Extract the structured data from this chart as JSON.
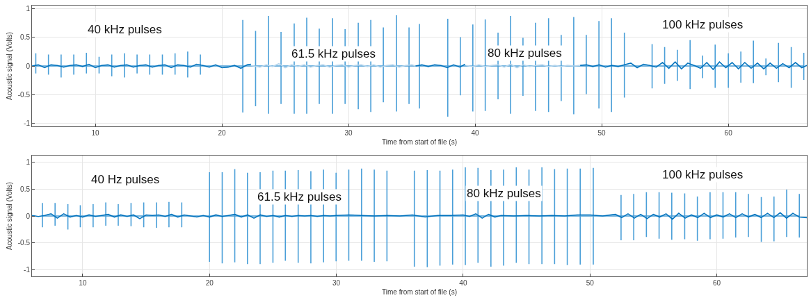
{
  "chart_data": [
    {
      "type": "line",
      "xlabel": "Time from start of file (s)",
      "ylabel": "Acoustic signal (Volts)",
      "xlim": [
        5,
        66.2
      ],
      "ylim": [
        -1.05,
        1.05
      ],
      "xticks": [
        10,
        20,
        30,
        40,
        50,
        60
      ],
      "yticks": [
        -1,
        -0.5,
        0,
        0.5,
        1
      ],
      "grid": true,
      "marker": "none",
      "line_style": "solid",
      "annotations": [
        "40 kHz pulses",
        {
          "text": "61.5 kHz pulses",
          "x": 28.8,
          "y": 0.21
        },
        {
          "text": "80 kHz pulses",
          "x": 43.9,
          "y": 0.22
        },
        "100 kHz pulses"
      ],
      "series": [
        {
          "color": "#4a9fd8",
          "x": [
            5.3,
            5.3,
            5.3,
            5.3,
            6.3,
            6.3,
            6.3,
            6.3,
            7.3,
            7.3,
            7.3,
            7.3,
            8.3,
            8.3,
            8.3,
            8.3,
            9.3,
            9.3,
            9.3,
            9.3,
            10.3,
            10.3,
            10.3,
            10.3,
            11.3,
            11.3,
            11.3,
            11.3,
            12.3,
            12.3,
            12.3,
            12.3,
            13.3,
            13.3,
            13.3,
            13.3,
            14.3,
            14.3,
            14.3,
            14.3,
            15.3,
            15.3,
            15.3,
            15.3,
            16.3,
            16.3,
            16.3,
            16.3,
            17.3,
            17.3,
            17.3,
            17.3,
            18.3,
            18.3,
            18.3,
            18.3,
            21.65,
            21.65,
            21.65,
            21.65,
            22.66,
            22.66,
            22.66,
            22.66,
            23.68,
            23.68,
            23.68,
            23.68,
            24.67,
            24.67,
            24.67,
            24.67,
            25.71,
            25.71,
            25.71,
            25.71,
            26.7,
            26.7,
            26.7,
            26.7,
            27.69,
            27.69,
            27.69,
            27.69,
            28.74,
            28.74,
            28.74,
            28.74,
            29.73,
            29.73,
            29.73,
            29.73,
            30.77,
            30.77,
            30.77,
            30.77,
            31.76,
            31.76,
            31.76,
            31.76,
            32.75,
            32.75,
            32.75,
            32.75,
            33.79,
            33.79,
            33.79,
            33.79,
            34.78,
            34.78,
            34.78,
            34.78,
            35.6,
            35.6,
            35.6,
            35.6,
            37.84,
            37.84,
            37.84,
            37.84,
            38.83,
            38.83,
            38.83,
            38.83,
            39.82,
            39.82,
            39.82,
            39.82,
            40.8,
            40.8,
            40.8,
            40.8,
            41.81,
            41.81,
            41.81,
            41.81,
            42.8,
            42.8,
            42.8,
            42.8,
            43.78,
            43.78,
            43.78,
            43.78,
            44.77,
            44.77,
            44.77,
            44.77,
            45.8,
            45.8,
            45.8,
            45.8,
            46.8,
            46.8,
            46.8,
            46.8,
            47.79,
            47.79,
            47.79,
            47.79,
            48.78,
            48.78,
            48.78,
            48.78,
            49.78,
            49.78,
            49.78,
            49.78,
            50.77,
            50.77,
            50.77,
            50.77,
            51.79,
            51.79,
            51.79,
            51.79,
            53.98,
            53.98,
            53.98,
            53.98,
            54.97,
            54.97,
            54.97,
            54.97,
            55.97,
            55.97,
            55.97,
            55.97,
            56.98,
            56.98,
            56.98,
            56.98,
            57.97,
            57.97,
            57.97,
            57.97,
            58.96,
            58.96,
            58.96,
            58.96,
            60,
            60,
            60,
            60,
            60.99,
            60.99,
            60.99,
            60.99,
            61.98,
            61.98,
            61.98,
            61.98,
            62.97,
            62.97,
            62.97,
            62.97,
            63.96,
            63.96,
            63.96,
            63.96,
            64.97,
            64.97,
            64.97,
            64.97,
            65.96,
            65.96,
            65.96,
            65.96
          ],
          "values": [
            0,
            0.22,
            -0.13,
            0,
            0,
            0.2,
            -0.15,
            0,
            0,
            0.2,
            -0.2,
            0,
            0,
            0.2,
            -0.15,
            0,
            0,
            0.23,
            -0.13,
            0,
            0,
            0.16,
            -0.13,
            0,
            0,
            0.2,
            -0.18,
            0,
            0,
            0.22,
            -0.2,
            0,
            0,
            0.2,
            -0.13,
            0,
            0,
            0.2,
            -0.15,
            0,
            0,
            0.2,
            -0.15,
            0,
            0,
            0.22,
            -0.15,
            0,
            0,
            0.25,
            -0.2,
            0,
            0,
            0.2,
            -0.15,
            0,
            0,
            0.8,
            -0.81,
            0,
            0,
            0.61,
            -0.7,
            0,
            0,
            0.87,
            -0.83,
            0,
            0,
            0.59,
            -0.66,
            0,
            0,
            0.74,
            -0.83,
            0,
            0,
            0.84,
            -0.83,
            0,
            0,
            0.65,
            -0.66,
            0,
            0,
            0.83,
            -0.83,
            0,
            0,
            0.64,
            -0.66,
            0,
            0,
            0.75,
            -0.75,
            0,
            0,
            0.8,
            -0.8,
            0,
            0,
            0.67,
            -0.63,
            0,
            0,
            0.88,
            -0.79,
            0,
            0,
            0.67,
            -0.66,
            0,
            0,
            0.73,
            -0.74,
            0,
            0,
            0.82,
            -0.88,
            0,
            0,
            0.5,
            -0.51,
            0,
            0,
            0.72,
            -0.79,
            0,
            0,
            0.81,
            -0.78,
            0,
            0,
            0.58,
            -0.58,
            0,
            0,
            0.87,
            -0.83,
            0,
            0,
            0.49,
            -0.52,
            0,
            0,
            0.75,
            -0.78,
            0,
            0,
            0.83,
            -0.8,
            0,
            0,
            0.54,
            -0.61,
            0,
            0,
            0.85,
            -0.84,
            0,
            0,
            0.54,
            -0.49,
            0,
            0,
            0.78,
            -0.74,
            0,
            0,
            0.83,
            -0.8,
            0,
            0,
            0.58,
            -0.55,
            0,
            0,
            0.38,
            -0.39,
            0,
            0,
            0.33,
            -0.31,
            0,
            0,
            0.28,
            -0.26,
            0,
            0,
            0.45,
            -0.4,
            0,
            0,
            0.18,
            -0.21,
            0,
            0,
            0.37,
            -0.38,
            0,
            0,
            0.22,
            -0.38,
            0,
            0,
            0.25,
            -0.29,
            0,
            0,
            0.44,
            -0.3,
            0,
            0,
            0.13,
            -0.16,
            0,
            0,
            0.4,
            -0.28,
            0,
            0,
            0.33,
            -0.38,
            0,
            0,
            0.23,
            -0.24,
            0
          ]
        },
        {
          "color": "#0072bd",
          "x": [
            5,
            5.5,
            6,
            6.5,
            7,
            7.5,
            8,
            8.5,
            9,
            9.5,
            10,
            10.5,
            11,
            11.5,
            12,
            12.5,
            13,
            13.5,
            14,
            14.5,
            15,
            15.5,
            16,
            16.5,
            17,
            17.5,
            18,
            18.5,
            19,
            19.5,
            20,
            20.5,
            21,
            21.5,
            22,
            22.3
          ],
          "values": [
            0,
            0.02,
            -0.03,
            0.02,
            0.01,
            -0.02,
            0.01,
            0.02,
            -0.01,
            0.03,
            -0.03,
            0.01,
            0.02,
            -0.02,
            0.01,
            0.02,
            -0.02,
            0.01,
            0.02,
            -0.02,
            0.01,
            0.02,
            -0.03,
            0.02,
            0.01,
            -0.02,
            0.03,
            0.01,
            -0.02,
            0.02,
            -0.03,
            -0.02,
            0.01,
            -0.04,
            0.02,
            0.03
          ]
        },
        {
          "color": "#b3d4ec",
          "x": [
            22.3,
            23,
            23.5,
            24,
            24.5,
            25,
            25.5,
            26,
            26.5,
            27,
            27.5,
            28,
            28.5,
            29,
            29.5,
            30,
            30.5,
            31,
            31.5,
            32,
            32.5,
            33,
            33.5,
            34,
            34.5,
            35,
            35.3
          ],
          "values": [
            0.01,
            -0.02,
            0.02,
            -0.01,
            0.04,
            -0.03,
            0.02,
            -0.01,
            0.02,
            -0.02,
            0.01,
            0.02,
            -0.02,
            0.01,
            0.02,
            -0.02,
            0.01,
            0.02,
            -0.01,
            0.02,
            -0.02,
            0.01,
            0.02,
            -0.02,
            0.01,
            0.02,
            0
          ]
        },
        {
          "color": "#0072bd",
          "x": [
            35.3,
            35.8,
            36.3,
            36.8,
            37.3,
            37.8,
            38.3,
            38.8,
            39.2
          ],
          "values": [
            0,
            0.02,
            -0.01,
            0.02,
            0.01,
            -0.03,
            0.02,
            -0.02,
            0.03
          ]
        },
        {
          "color": "#b3d4ec",
          "x": [
            39.3,
            39.8,
            40.3,
            40.8,
            41.3,
            41.8,
            42.3,
            42.8,
            43.3,
            43.8,
            44.3,
            44.8,
            45.3,
            45.8,
            46.3,
            46.8,
            47.3,
            47.8,
            48.3
          ],
          "values": [
            0.01,
            -0.01,
            0.02,
            -0.01,
            0.01,
            0.02,
            -0.02,
            0.03,
            -0.03,
            0.02,
            -0.01,
            0.01,
            0.02,
            -0.01,
            0.01,
            -0.01,
            0.01,
            0,
            0.01
          ]
        },
        {
          "color": "#0072bd",
          "x": [
            48.3,
            48.8,
            49.3,
            49.8,
            50.3,
            50.8,
            51.3,
            51.8,
            52.3,
            52.8,
            53.3,
            53.8,
            54.3,
            54.8,
            55.3,
            55.8,
            56.3,
            56.8,
            57.3,
            57.8,
            58.3,
            58.8,
            59.3,
            59.8,
            60.3,
            60.8,
            61.3,
            61.8,
            62.3,
            62.8,
            63.3,
            63.8,
            64.3,
            64.8,
            65.3,
            65.8,
            66.2
          ],
          "values": [
            0.01,
            0.02,
            -0.01,
            0.02,
            -0.02,
            0.01,
            -0.01,
            0.02,
            0.05,
            -0.03,
            0.03,
            0.01,
            -0.02,
            0.06,
            -0.04,
            0.07,
            -0.05,
            0.05,
            0.01,
            -0.04,
            0.06,
            -0.06,
            0.07,
            -0.03,
            0.06,
            -0.05,
            0.06,
            -0.04,
            0.05,
            -0.05,
            0.05,
            -0.04,
            0.04,
            -0.03,
            0.06,
            -0.03,
            0.01
          ]
        }
      ]
    },
    {
      "type": "line",
      "xlabel": "Time from start of file (s)",
      "ylabel": "Acoustic signal (Volts)",
      "xlim": [
        6,
        67.1
      ],
      "ylim": [
        -1.12,
        1.12
      ],
      "xticks": [
        10,
        20,
        30,
        40,
        50,
        60
      ],
      "yticks": [
        -1,
        -0.5,
        0,
        0.5,
        1
      ],
      "grid": true,
      "marker": "none",
      "line_style": "solid",
      "annotations": [
        "40 Hz pulses",
        {
          "text": "61.5 kHz pulses",
          "x": 27.1,
          "y": 0.36
        },
        {
          "text": "80 kHz pulses",
          "x": 43.2,
          "y": 0.42
        },
        "100 kHz pulses"
      ],
      "series": [
        {
          "color": "#4a9fd8",
          "x": [
            6.82,
            6.82,
            6.82,
            6.82,
            7.82,
            7.82,
            7.82,
            7.82,
            8.83,
            8.83,
            8.83,
            8.83,
            9.81,
            9.81,
            9.81,
            9.81,
            10.82,
            10.82,
            10.82,
            10.82,
            11.82,
            11.82,
            11.82,
            11.82,
            12.8,
            12.8,
            12.8,
            12.8,
            13.81,
            13.81,
            13.81,
            13.81,
            14.81,
            14.81,
            14.81,
            14.81,
            15.82,
            15.82,
            15.82,
            15.82,
            16.8,
            16.8,
            16.8,
            16.8,
            17.81,
            17.81,
            17.81,
            17.81,
            20,
            20,
            20,
            20,
            21,
            21,
            21,
            21,
            21.99,
            21.99,
            21.99,
            21.99,
            22.99,
            22.99,
            22.99,
            22.99,
            23.99,
            23.99,
            23.99,
            23.99,
            25,
            25,
            25,
            25,
            25.98,
            25.98,
            25.98,
            25.98,
            26.99,
            26.99,
            26.99,
            26.99,
            27.99,
            27.99,
            27.99,
            27.99,
            28.99,
            28.99,
            28.99,
            28.99,
            29.98,
            29.98,
            29.98,
            29.98,
            30.98,
            30.98,
            30.98,
            30.98,
            31.99,
            31.99,
            31.99,
            31.99,
            32.99,
            32.99,
            32.99,
            32.99,
            33.99,
            33.99,
            33.99,
            33.99,
            36.15,
            36.15,
            36.15,
            36.15,
            37.17,
            37.17,
            37.17,
            37.17,
            38.17,
            38.17,
            38.17,
            38.17,
            39.17,
            39.17,
            39.17,
            39.17,
            40.17,
            40.17,
            40.17,
            40.17,
            41.17,
            41.17,
            41.17,
            41.17,
            42.19,
            42.19,
            42.19,
            42.19,
            43.19,
            43.19,
            43.19,
            43.19,
            44.19,
            44.19,
            44.19,
            44.19,
            45.19,
            45.19,
            45.19,
            45.19,
            46.21,
            46.21,
            46.21,
            46.21,
            47.21,
            47.21,
            47.21,
            47.21,
            48.21,
            48.21,
            48.21,
            48.21,
            49.23,
            49.23,
            49.23,
            49.23,
            50.26,
            50.26,
            50.26,
            50.26,
            52.45,
            52.45,
            52.45,
            52.45,
            53.45,
            53.45,
            53.45,
            53.45,
            54.45,
            54.45,
            54.45,
            54.45,
            55.45,
            55.45,
            55.45,
            55.45,
            56.45,
            56.45,
            56.45,
            56.45,
            57.47,
            57.47,
            57.47,
            57.47,
            58.47,
            58.47,
            58.47,
            58.47,
            59.47,
            59.47,
            59.47,
            59.47,
            60.49,
            60.49,
            60.49,
            60.49,
            61.49,
            61.49,
            61.49,
            61.49,
            62.49,
            62.49,
            62.49,
            62.49,
            63.51,
            63.51,
            63.51,
            63.51,
            64.51,
            64.51,
            64.51,
            64.51,
            65.51,
            65.51,
            65.51,
            65.51,
            66.51,
            66.51,
            66.51,
            66.51
          ],
          "values": [
            0,
            0.24,
            -0.21,
            0,
            0,
            0.24,
            -0.18,
            0,
            0,
            0.22,
            -0.25,
            0,
            0,
            0.2,
            -0.21,
            0,
            0,
            0.22,
            -0.21,
            0,
            0,
            0.25,
            -0.18,
            0,
            0,
            0.22,
            -0.18,
            0,
            0,
            0.24,
            -0.19,
            0,
            0,
            0.25,
            -0.21,
            0,
            0,
            0.25,
            -0.22,
            0,
            0,
            0.26,
            -0.21,
            0,
            0,
            0.25,
            -0.21,
            0,
            0,
            0.81,
            -0.85,
            0,
            0,
            0.81,
            -0.88,
            0,
            0,
            0.87,
            -0.86,
            0,
            0,
            0.8,
            -0.89,
            0,
            0,
            0.81,
            -0.89,
            0,
            0,
            0.84,
            -0.87,
            0,
            0,
            0.84,
            -0.83,
            0,
            0,
            0.85,
            -0.87,
            0,
            0,
            0.83,
            -0.88,
            0,
            0,
            0.86,
            -0.86,
            0,
            0,
            0.8,
            -0.84,
            0,
            0,
            0.86,
            -0.83,
            0,
            0,
            0.88,
            -0.83,
            0,
            0,
            0.86,
            -0.85,
            0,
            0,
            0.84,
            -0.84,
            0,
            0,
            0.84,
            -0.94,
            0,
            0,
            0.85,
            -0.95,
            0,
            0,
            0.84,
            -0.92,
            0,
            0,
            0.86,
            -0.9,
            0,
            0,
            0.9,
            -0.91,
            0,
            0,
            0.89,
            -0.87,
            0,
            0,
            0.85,
            -0.94,
            0,
            0,
            0.86,
            -0.92,
            0,
            0,
            0.9,
            -0.87,
            0,
            0,
            0.86,
            -0.89,
            0,
            0,
            0.9,
            -0.89,
            0,
            0,
            0.87,
            -0.89,
            0,
            0,
            0.88,
            -0.91,
            0,
            0,
            0.88,
            -0.9,
            0,
            0,
            0.89,
            -0.9,
            0,
            0,
            0.39,
            -0.45,
            0,
            0,
            0.41,
            -0.45,
            0,
            0,
            0.44,
            -0.39,
            0,
            0,
            0.44,
            -0.42,
            0,
            0,
            0.43,
            -0.44,
            0,
            0,
            0.42,
            -0.43,
            0,
            0,
            0.36,
            -0.46,
            0,
            0,
            0.44,
            -0.43,
            0,
            0,
            0.44,
            -0.42,
            0,
            0,
            0.44,
            -0.4,
            0,
            0,
            0.41,
            -0.39,
            0,
            0,
            0.35,
            -0.48,
            0,
            0,
            0.36,
            -0.47,
            0,
            0,
            0.49,
            -0.39,
            0,
            0,
            0.41,
            -0.4,
            0
          ]
        },
        {
          "color": "#0072bd",
          "x": [
            6,
            6.5,
            7,
            7.5,
            8,
            8.5,
            9,
            9.5,
            10,
            10.5,
            11,
            11.5,
            12,
            12.5,
            13,
            13.5,
            14,
            14.5,
            15,
            15.5,
            16,
            16.5,
            17,
            17.5,
            18,
            18.5,
            19,
            19.5,
            20,
            20.5,
            21,
            21.5,
            22,
            22.5,
            23,
            23.5,
            24,
            24.5,
            25,
            25.5,
            26,
            26.5,
            27,
            27.5,
            28,
            28.5,
            29,
            29.5,
            30,
            31,
            32,
            33,
            34,
            35,
            36,
            37,
            38,
            39,
            40,
            40.5,
            41,
            41.5,
            42,
            42.5,
            43,
            44,
            45,
            46,
            47,
            48,
            49,
            50,
            51,
            52,
            52.5,
            53,
            53.5,
            54,
            54.5,
            55,
            55.5,
            56,
            56.5,
            57,
            57.5,
            58,
            58.5,
            59,
            59.5,
            60,
            60.5,
            61,
            61.5,
            62,
            62.5,
            63,
            63.5,
            64,
            64.5,
            65,
            65.5,
            66,
            66.5,
            67.1
          ],
          "values": [
            0.01,
            -0.01,
            0.01,
            0.04,
            -0.04,
            0.04,
            -0.02,
            0.01,
            -0.02,
            0.02,
            -0.01,
            0.01,
            0.03,
            -0.02,
            0.02,
            -0.01,
            0.02,
            -0.05,
            0.02,
            0.01,
            0.02,
            -0.01,
            0.03,
            -0.02,
            0.02,
            0,
            -0.02,
            0.01,
            -0.02,
            0.02,
            -0.01,
            0.01,
            0.03,
            -0.02,
            0.02,
            -0.04,
            0.02,
            -0.01,
            0.01,
            -0.02,
            0.01,
            -0.01,
            0.01,
            0,
            0.01,
            -0.01,
            0.01,
            0,
            0.01,
            0.02,
            0.01,
            0,
            0.01,
            0,
            0.02,
            -0.02,
            0.01,
            0.01,
            0.02,
            -0.01,
            0.04,
            -0.04,
            0.03,
            -0.02,
            0.01,
            0,
            0.01,
            0,
            0.01,
            0,
            0.02,
            0.02,
            0,
            0.03,
            -0.03,
            0.04,
            -0.04,
            0.03,
            -0.05,
            0.03,
            -0.02,
            0.04,
            -0.06,
            0.05,
            -0.04,
            0.02,
            -0.03,
            0.05,
            -0.03,
            0.02,
            -0.02,
            0.04,
            -0.03,
            0.04,
            -0.02,
            0.03,
            -0.03,
            0.05,
            -0.03,
            0.06,
            -0.04,
            0.05,
            -0.02,
            -0.03
          ]
        }
      ]
    }
  ]
}
